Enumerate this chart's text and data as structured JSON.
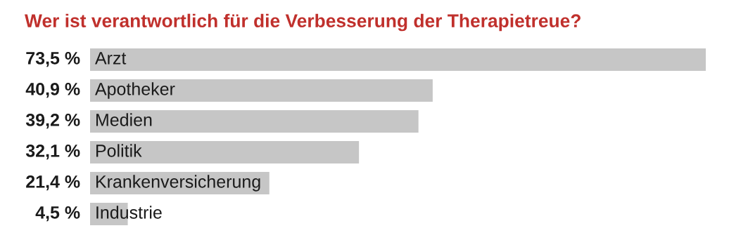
{
  "chart_data": {
    "type": "bar",
    "orientation": "horizontal",
    "title": "Wer ist verantwortlich für die Verbesserung der Therapietreue?",
    "categories": [
      "Arzt",
      "Apotheker",
      "Medien",
      "Politik",
      "Krankenversicherung",
      "Industrie"
    ],
    "values": [
      73.5,
      40.9,
      39.2,
      32.1,
      21.4,
      4.5
    ],
    "value_labels": [
      "73,5 %",
      "40,9 %",
      "39,2 %",
      "32,1 %",
      "21,4 %",
      "4,5 %"
    ],
    "color": "#c6c6c6"
  }
}
